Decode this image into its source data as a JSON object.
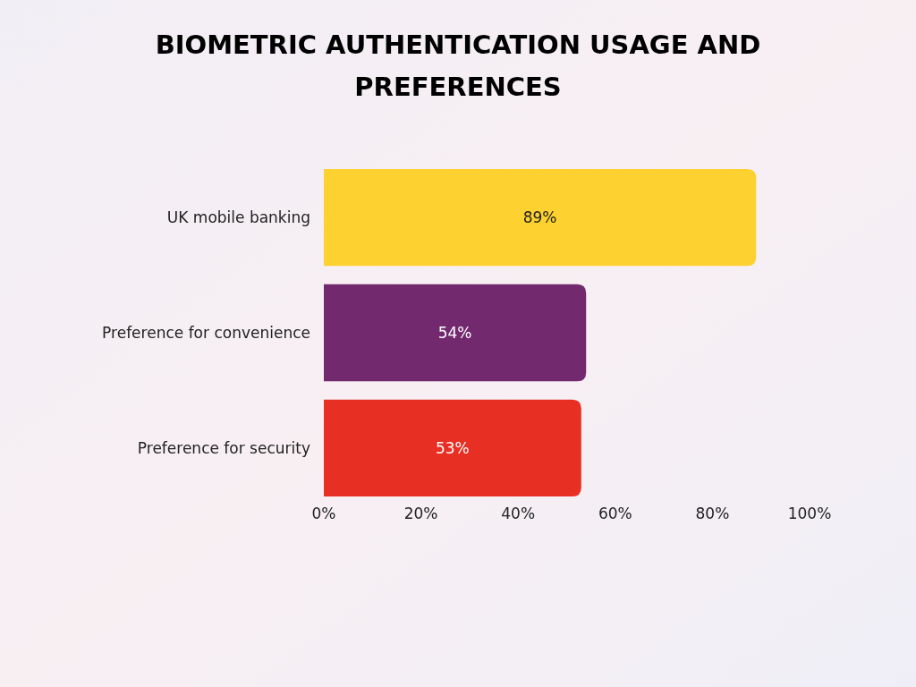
{
  "chart_data": {
    "type": "bar",
    "orientation": "horizontal",
    "title": "BIOMETRIC AUTHENTICATION USAGE AND PREFERENCES",
    "categories": [
      "UK mobile banking",
      "Preference for convenience",
      "Preference for security"
    ],
    "values": [
      89,
      54,
      53
    ],
    "colors": [
      "#fdd130",
      "#73296e",
      "#e82f24"
    ],
    "value_labels": [
      "89%",
      "54%",
      "53%"
    ],
    "xlim": [
      0,
      100
    ],
    "xticks": [
      {
        "value": 0,
        "label": "0%"
      },
      {
        "value": 20,
        "label": "20%"
      },
      {
        "value": 40,
        "label": "40%"
      },
      {
        "value": 60,
        "label": "60%"
      },
      {
        "value": 80,
        "label": "80%"
      },
      {
        "value": 100,
        "label": "100%"
      }
    ],
    "grid": false
  }
}
